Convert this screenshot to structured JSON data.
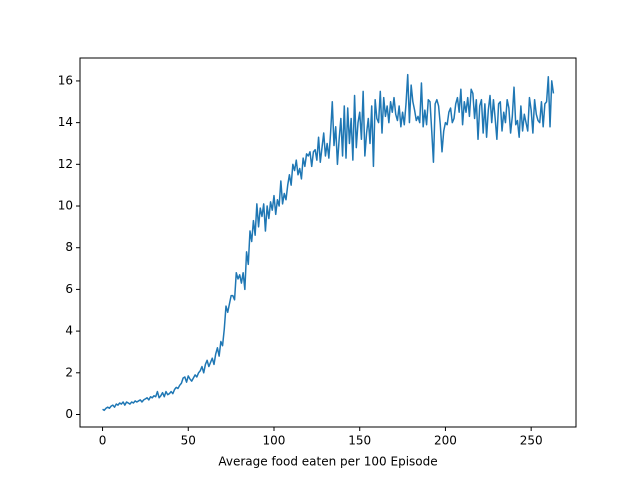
{
  "chart_data": {
    "type": "line",
    "xlabel": "Average food eaten per 100 Episode",
    "x": [
      0,
      1,
      2,
      3,
      4,
      5,
      6,
      7,
      8,
      9,
      10,
      11,
      12,
      13,
      14,
      15,
      16,
      17,
      18,
      19,
      20,
      21,
      22,
      23,
      24,
      25,
      26,
      27,
      28,
      29,
      30,
      31,
      32,
      33,
      34,
      35,
      36,
      37,
      38,
      39,
      40,
      41,
      42,
      43,
      44,
      45,
      46,
      47,
      48,
      49,
      50,
      51,
      52,
      53,
      54,
      55,
      56,
      57,
      58,
      59,
      60,
      61,
      62,
      63,
      64,
      65,
      66,
      67,
      68,
      69,
      70,
      71,
      72,
      73,
      74,
      75,
      76,
      77,
      78,
      79,
      80,
      81,
      82,
      83,
      84,
      85,
      86,
      87,
      88,
      89,
      90,
      91,
      92,
      93,
      94,
      95,
      96,
      97,
      98,
      99,
      100,
      101,
      102,
      103,
      104,
      105,
      106,
      107,
      108,
      109,
      110,
      111,
      112,
      113,
      114,
      115,
      116,
      117,
      118,
      119,
      120,
      121,
      122,
      123,
      124,
      125,
      126,
      127,
      128,
      129,
      130,
      131,
      132,
      133,
      134,
      135,
      136,
      137,
      138,
      139,
      140,
      141,
      142,
      143,
      144,
      145,
      146,
      147,
      148,
      149,
      150,
      151,
      152,
      153,
      154,
      155,
      156,
      157,
      158,
      159,
      160,
      161,
      162,
      163,
      164,
      165,
      166,
      167,
      168,
      169,
      170,
      171,
      172,
      173,
      174,
      175,
      176,
      177,
      178,
      179,
      180,
      181,
      182,
      183,
      184,
      185,
      186,
      187,
      188,
      189,
      190,
      191,
      192,
      193,
      194,
      195,
      196,
      197,
      198,
      199,
      200,
      201,
      202,
      203,
      204,
      205,
      206,
      207,
      208,
      209,
      210,
      211,
      212,
      213,
      214,
      215,
      216,
      217,
      218,
      219,
      220,
      221,
      222,
      223,
      224,
      225,
      226,
      227,
      228,
      229,
      230,
      231,
      232,
      233,
      234,
      235,
      236,
      237,
      238,
      239,
      240,
      241,
      242,
      243,
      244,
      245,
      246,
      247,
      248,
      249,
      250,
      251,
      252,
      253,
      254,
      255,
      256,
      257,
      258,
      259,
      260,
      261,
      262,
      263
    ],
    "series": [
      {
        "color": "#1f77b4",
        "values": [
          0.25,
          0.2,
          0.3,
          0.35,
          0.3,
          0.4,
          0.45,
          0.35,
          0.5,
          0.45,
          0.55,
          0.5,
          0.6,
          0.45,
          0.6,
          0.55,
          0.5,
          0.6,
          0.55,
          0.65,
          0.6,
          0.65,
          0.7,
          0.6,
          0.7,
          0.75,
          0.8,
          0.7,
          0.85,
          0.8,
          0.9,
          0.85,
          1.1,
          0.8,
          0.9,
          1.05,
          0.85,
          1.1,
          0.95,
          1.0,
          1.1,
          1.0,
          1.2,
          1.3,
          1.25,
          1.4,
          1.5,
          1.75,
          1.8,
          1.55,
          1.85,
          1.7,
          1.6,
          1.75,
          1.9,
          1.8,
          2.0,
          2.1,
          2.3,
          2.0,
          2.4,
          2.6,
          2.3,
          2.5,
          2.7,
          2.4,
          2.9,
          3.2,
          2.8,
          3.5,
          3.3,
          4.1,
          5.2,
          4.9,
          5.3,
          5.7,
          5.7,
          5.5,
          6.8,
          6.5,
          6.7,
          6.3,
          6.8,
          6.0,
          7.8,
          7.2,
          8.8,
          8.3,
          9.3,
          8.6,
          10.1,
          9.0,
          9.9,
          9.5,
          10.1,
          8.8,
          10.0,
          9.4,
          10.2,
          9.8,
          10.5,
          9.6,
          10.3,
          10.0,
          11.2,
          10.1,
          10.6,
          10.3,
          11.0,
          11.5,
          11.0,
          12.0,
          11.7,
          12.2,
          11.5,
          11.8,
          11.3,
          12.3,
          11.9,
          12.5,
          12.4,
          12.6,
          11.9,
          12.6,
          12.7,
          12.2,
          13.3,
          12.1,
          12.8,
          13.5,
          12.4,
          13.0,
          12.3,
          13.5,
          15.0,
          12.9,
          13.8,
          12.0,
          13.2,
          14.2,
          12.4,
          14.8,
          12.3,
          14.7,
          13.0,
          14.2,
          12.2,
          15.3,
          12.8,
          14.0,
          14.5,
          13.2,
          15.5,
          12.4,
          13.5,
          14.2,
          13.0,
          14.8,
          11.9,
          15.1,
          14.2,
          14.0,
          15.5,
          13.5,
          15.2,
          14.3,
          14.8,
          14.0,
          15.0,
          14.5,
          15.2,
          14.4,
          14.1,
          14.8,
          13.8,
          14.5,
          13.9,
          14.9,
          16.3,
          14.0,
          15.8,
          15.0,
          14.6,
          14.1,
          14.3,
          14.0,
          15.9,
          13.8,
          14.6,
          13.9,
          15.1,
          15.0,
          13.6,
          12.1,
          14.9,
          15.1,
          14.8,
          13.9,
          12.6,
          13.6,
          14.0,
          13.9,
          14.5,
          14.7,
          14.0,
          14.2,
          14.9,
          15.2,
          14.5,
          15.6,
          13.9,
          15.0,
          14.5,
          15.2,
          14.3,
          15.6,
          15.4,
          14.2,
          15.1,
          13.2,
          14.8,
          15.1,
          13.5,
          14.9,
          13.3,
          14.6,
          15.3,
          14.0,
          15.1,
          14.2,
          13.2,
          14.9,
          15.0,
          13.6,
          14.5,
          14.0,
          15.1,
          14.7,
          13.5,
          14.3,
          15.7,
          13.9,
          14.1,
          13.3,
          14.8,
          13.6,
          14.4,
          14.0,
          13.6,
          15.2,
          14.6,
          13.5,
          15.1,
          14.4,
          14.1,
          14.0,
          15.0,
          13.8,
          14.9,
          15.0,
          16.2,
          13.8,
          16.0,
          15.4
        ]
      }
    ],
    "xlim": [
      -13.15,
      276.15
    ],
    "ylim": [
      -0.6,
      17.1
    ],
    "xticks": [
      0,
      50,
      100,
      150,
      200,
      250
    ],
    "yticks": [
      0,
      2,
      4,
      6,
      8,
      10,
      12,
      14,
      16
    ]
  }
}
